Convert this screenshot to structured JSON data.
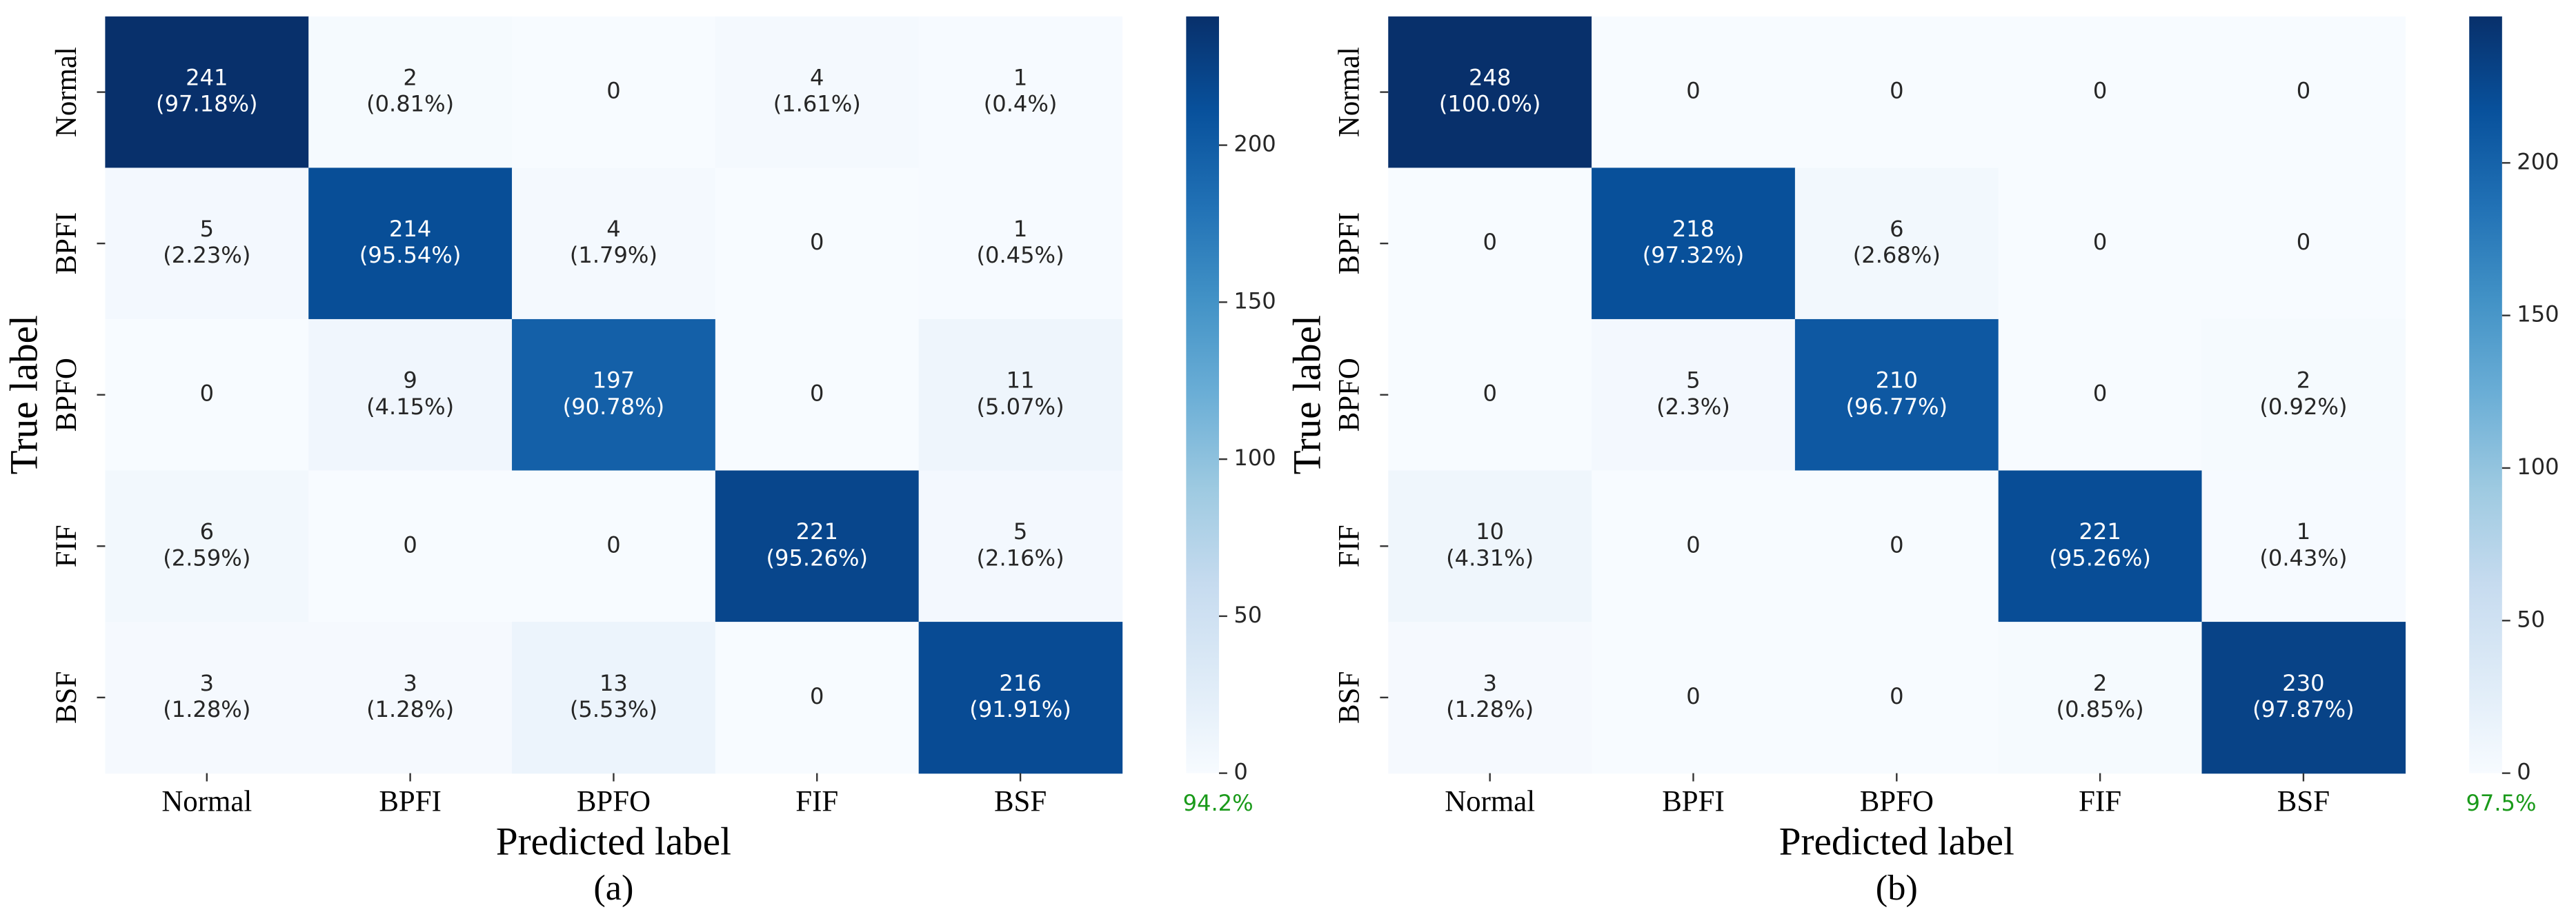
{
  "chart_data": [
    {
      "type": "heatmap",
      "colormap": "Blues",
      "x_categories": [
        "Normal",
        "BPFI",
        "BPFO",
        "FIF",
        "BSF"
      ],
      "y_categories": [
        "Normal",
        "BPFI",
        "BPFO",
        "FIF",
        "BSF"
      ],
      "values": [
        [
          241,
          2,
          0,
          4,
          1
        ],
        [
          5,
          214,
          4,
          0,
          1
        ],
        [
          0,
          9,
          197,
          0,
          11
        ],
        [
          6,
          0,
          0,
          221,
          5
        ],
        [
          3,
          3,
          13,
          0,
          216
        ]
      ],
      "cell_labels": [
        [
          "(97.18%)",
          "(0.81%)",
          null,
          "(1.61%)",
          "(0.4%)"
        ],
        [
          "(2.23%)",
          "(95.54%)",
          "(1.79%)",
          null,
          "(0.45%)"
        ],
        [
          null,
          "(4.15%)",
          "(90.78%)",
          null,
          "(5.07%)"
        ],
        [
          "(2.59%)",
          null,
          null,
          "(95.26%)",
          "(2.16%)"
        ],
        [
          "(1.28%)",
          "(1.28%)",
          "(5.53%)",
          null,
          "(91.91%)"
        ]
      ],
      "clim": [
        0,
        241
      ],
      "cticks": [
        0,
        50,
        100,
        150,
        200
      ],
      "x_label": "Predicted label",
      "y_label": "True label",
      "caption": "(a)",
      "annotation": "94.2%",
      "annotation_color": "#1a9a1a"
    },
    {
      "type": "heatmap",
      "colormap": "Blues",
      "x_categories": [
        "Normal",
        "BPFI",
        "BPFO",
        "FIF",
        "BSF"
      ],
      "y_categories": [
        "Normal",
        "BPFI",
        "BPFO",
        "FIF",
        "BSF"
      ],
      "values": [
        [
          248,
          0,
          0,
          0,
          0
        ],
        [
          0,
          218,
          6,
          0,
          0
        ],
        [
          0,
          5,
          210,
          0,
          2
        ],
        [
          10,
          0,
          0,
          221,
          1
        ],
        [
          3,
          0,
          0,
          2,
          230
        ]
      ],
      "cell_labels": [
        [
          "(100.0%)",
          null,
          null,
          null,
          null
        ],
        [
          null,
          "(97.32%)",
          "(2.68%)",
          null,
          null
        ],
        [
          null,
          "(2.3%)",
          "(96.77%)",
          null,
          "(0.92%)"
        ],
        [
          "(4.31%)",
          null,
          null,
          "(95.26%)",
          "(0.43%)"
        ],
        [
          "(1.28%)",
          null,
          null,
          "(0.85%)",
          "(97.87%)"
        ]
      ],
      "clim": [
        0,
        248
      ],
      "cticks": [
        0,
        50,
        100,
        150,
        200
      ],
      "x_label": "Predicted label",
      "y_label": "True label",
      "caption": "(b)",
      "annotation": "97.5%",
      "annotation_color": "#1a9a1a"
    }
  ]
}
